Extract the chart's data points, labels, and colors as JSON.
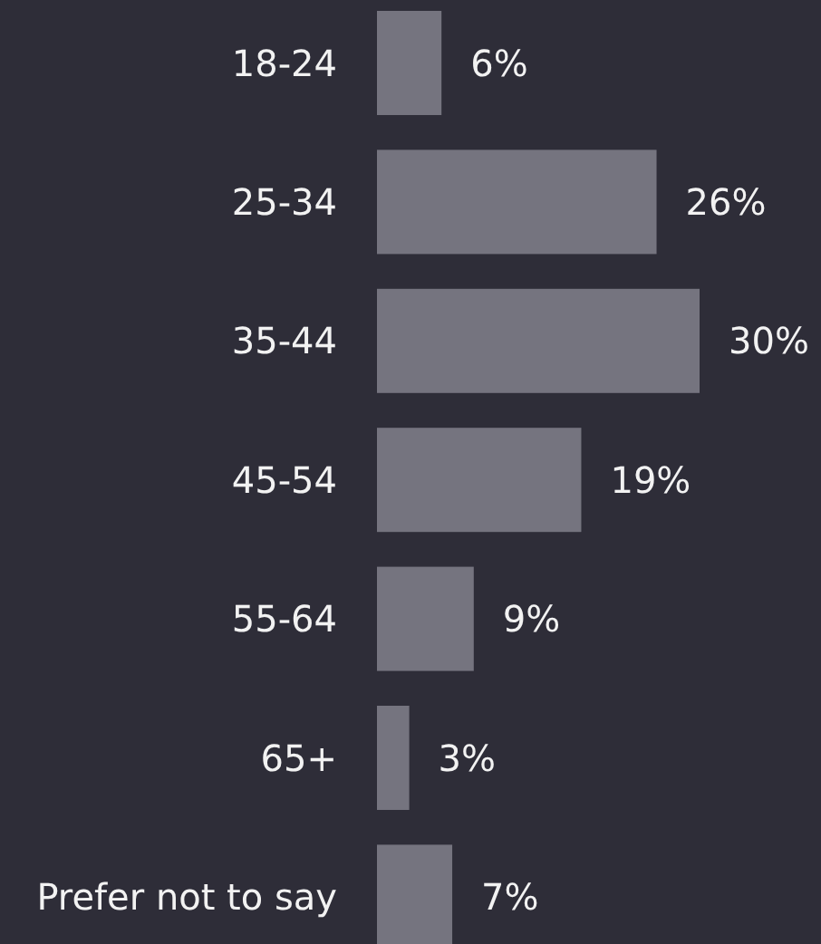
{
  "chart_data": {
    "type": "bar",
    "orientation": "horizontal",
    "categories": [
      "18-24",
      "25-34",
      "35-44",
      "45-54",
      "55-64",
      "65+",
      "Prefer not to say"
    ],
    "values": [
      6,
      26,
      30,
      19,
      9,
      3,
      7
    ],
    "value_labels": [
      "6%",
      "26%",
      "30%",
      "19%",
      "9%",
      "3%",
      "7%"
    ],
    "color": "#75747f"
  }
}
